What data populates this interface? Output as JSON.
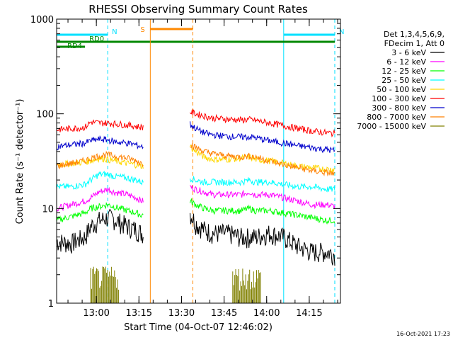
{
  "chart_data": {
    "type": "line",
    "title": "RHESSI Observing Summary Count Rates",
    "xlabel": "Start Time (04-Oct-07 12:46:02)",
    "ylabel": "Count Rate (s⁻¹ detector⁻¹)",
    "yscale": "log",
    "ylim": [
      1,
      1000
    ],
    "xlim_minutes_after_start": [
      0,
      100
    ],
    "x_ticks": [
      "13:00",
      "13:15",
      "13:30",
      "13:45",
      "14:00",
      "14:15"
    ],
    "y_ticks": [
      "1",
      "10",
      "100",
      "1000"
    ],
    "legend_header": [
      "Det 1,3,4,5,6,9,",
      "FDecim 1, Att 0"
    ],
    "legend_position": "right",
    "footer_timestamp": "16-Oct-2021 17:23",
    "flags": [
      {
        "label": "N",
        "color": "#00e0ff",
        "start_min": 0,
        "end_min": 18
      },
      {
        "label": "N",
        "color": "#00e0ff",
        "start_min": 80,
        "end_min": 98
      },
      {
        "label": "RD0",
        "color": "#008800",
        "start_min": 0,
        "end_min": 98
      },
      {
        "label": "RD4",
        "color": "#008800",
        "start_min": 0,
        "end_min": 10
      },
      {
        "label": "S",
        "color": "#ff8800",
        "start_min": 33,
        "end_min": 48
      }
    ],
    "series": [
      {
        "name": "3 - 6 keV",
        "color": "#000000",
        "x": [
          0,
          5,
          10,
          12,
          15,
          18,
          20,
          25,
          28,
          30,
          47,
          49,
          52,
          55,
          60,
          65,
          68,
          70,
          75,
          80,
          85,
          90,
          95,
          98
        ],
        "y": [
          4.5,
          4.3,
          5,
          6.5,
          7.5,
          8,
          7.8,
          6.5,
          6,
          5.5,
          9,
          7,
          6,
          5.5,
          5.5,
          5,
          5,
          5,
          5.5,
          5,
          4,
          3.5,
          3.5,
          3.3
        ]
      },
      {
        "name": "6 - 12 keV",
        "color": "#ff00ff",
        "x": [
          0,
          5,
          10,
          12,
          15,
          18,
          20,
          25,
          28,
          30,
          47,
          49,
          52,
          55,
          60,
          65,
          68,
          70,
          75,
          80,
          85,
          90,
          95,
          98
        ],
        "y": [
          10,
          11,
          12,
          13,
          15,
          16,
          15,
          14,
          13,
          12,
          17,
          16,
          15,
          14,
          14,
          14,
          15,
          14,
          14,
          13,
          12,
          11,
          11,
          10.5
        ]
      },
      {
        "name": "12 - 25 keV",
        "color": "#00ff00",
        "x": [
          0,
          5,
          10,
          12,
          15,
          18,
          20,
          25,
          28,
          30,
          47,
          49,
          52,
          55,
          60,
          65,
          68,
          70,
          75,
          80,
          85,
          90,
          95,
          98
        ],
        "y": [
          7.5,
          8.2,
          9,
          10,
          10.5,
          11,
          10.5,
          9.5,
          9,
          8.5,
          12,
          11,
          10,
          9.5,
          9.5,
          9.5,
          10,
          9.5,
          9.5,
          9,
          8.5,
          8,
          7.5,
          7.5
        ]
      },
      {
        "name": "25 - 50 keV",
        "color": "#00ffff",
        "x": [
          0,
          5,
          10,
          12,
          15,
          18,
          20,
          25,
          28,
          30,
          47,
          49,
          52,
          55,
          60,
          65,
          68,
          70,
          75,
          80,
          85,
          90,
          95,
          98
        ],
        "y": [
          17,
          17,
          18,
          20,
          23,
          23,
          22,
          21,
          20,
          19,
          21,
          20,
          19,
          19,
          19,
          19,
          20,
          19,
          19,
          18,
          17,
          17,
          16,
          16
        ]
      },
      {
        "name": "50 - 100 keV",
        "color": "#ffd700",
        "x": [
          0,
          5,
          10,
          12,
          15,
          18,
          20,
          25,
          28,
          30,
          47,
          49,
          52,
          55,
          60,
          65,
          68,
          70,
          75,
          80,
          85,
          90,
          95,
          98
        ],
        "y": [
          29,
          30,
          31,
          32,
          34,
          33,
          32,
          30,
          29,
          28,
          45,
          40,
          35,
          33,
          33,
          34,
          35,
          33,
          32,
          30,
          28,
          27,
          26,
          26
        ]
      },
      {
        "name": "100 - 300 keV",
        "color": "#ff0000",
        "x": [
          0,
          5,
          10,
          12,
          15,
          18,
          20,
          25,
          28,
          30,
          47,
          49,
          52,
          55,
          60,
          65,
          68,
          70,
          75,
          80,
          85,
          90,
          95,
          98
        ],
        "y": [
          68,
          70,
          72,
          82,
          80,
          80,
          79,
          76,
          74,
          72,
          105,
          100,
          95,
          90,
          88,
          86,
          87,
          85,
          80,
          75,
          70,
          66,
          63,
          62
        ]
      },
      {
        "name": "300 - 800 keV",
        "color": "#0000cc",
        "x": [
          0,
          5,
          10,
          12,
          15,
          18,
          20,
          25,
          28,
          30,
          47,
          49,
          52,
          55,
          60,
          65,
          68,
          70,
          75,
          80,
          85,
          90,
          95,
          98
        ],
        "y": [
          45,
          47,
          49,
          52,
          54,
          53,
          51,
          49,
          47,
          45,
          78,
          70,
          63,
          60,
          58,
          57,
          57,
          56,
          52,
          49,
          46,
          44,
          42,
          41
        ]
      },
      {
        "name": "800 - 7000 keV",
        "color": "#ff8000",
        "x": [
          0,
          5,
          10,
          12,
          15,
          18,
          20,
          25,
          28,
          30,
          47,
          49,
          52,
          55,
          60,
          65,
          68,
          70,
          75,
          80,
          85,
          90,
          95,
          98
        ],
        "y": [
          28,
          30,
          32,
          34,
          36,
          37,
          36,
          34,
          32,
          30,
          48,
          44,
          40,
          38,
          36,
          35,
          36,
          35,
          32,
          29,
          27,
          25,
          24,
          23
        ]
      },
      {
        "name": "7000 - 15000 keV",
        "color": "#808000",
        "x": [
          12,
          14,
          16,
          18,
          20,
          22,
          62,
          64,
          66,
          68,
          70,
          72
        ],
        "y": [
          2.2,
          2.2,
          2.2,
          2.2,
          2.2,
          2.2,
          2.2,
          2.2,
          2.2,
          2.2,
          2.2,
          2.2
        ]
      }
    ]
  }
}
